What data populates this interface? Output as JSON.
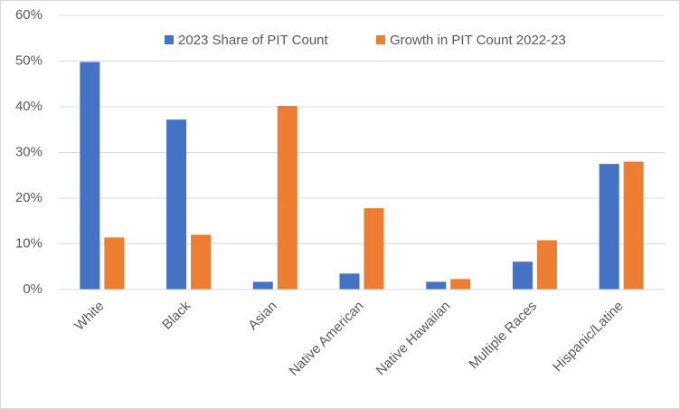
{
  "chart_data": {
    "type": "bar",
    "categories": [
      "White",
      "Black",
      "Asian",
      "Native American",
      "Native Hawaiian",
      "Multiple Races",
      "Hispanic/Latine"
    ],
    "series": [
      {
        "name": "2023 Share of PIT Count",
        "color": "#4472c4",
        "values": [
          49.8,
          37.2,
          1.7,
          3.5,
          1.7,
          6.1,
          27.5
        ]
      },
      {
        "name": "Growth in PIT Count 2022-23",
        "color": "#ed7d31",
        "values": [
          11.4,
          12.0,
          40.2,
          17.8,
          2.3,
          10.8,
          28.0
        ]
      }
    ],
    "ylim": [
      0,
      60
    ],
    "yticks": [
      {
        "value": 0,
        "label": "0%"
      },
      {
        "value": 10,
        "label": "10%"
      },
      {
        "value": 20,
        "label": "20%"
      },
      {
        "value": 30,
        "label": "30%"
      },
      {
        "value": 40,
        "label": "40%"
      },
      {
        "value": 50,
        "label": "50%"
      },
      {
        "value": 60,
        "label": "60%"
      }
    ],
    "grid": true,
    "legend": "top"
  }
}
